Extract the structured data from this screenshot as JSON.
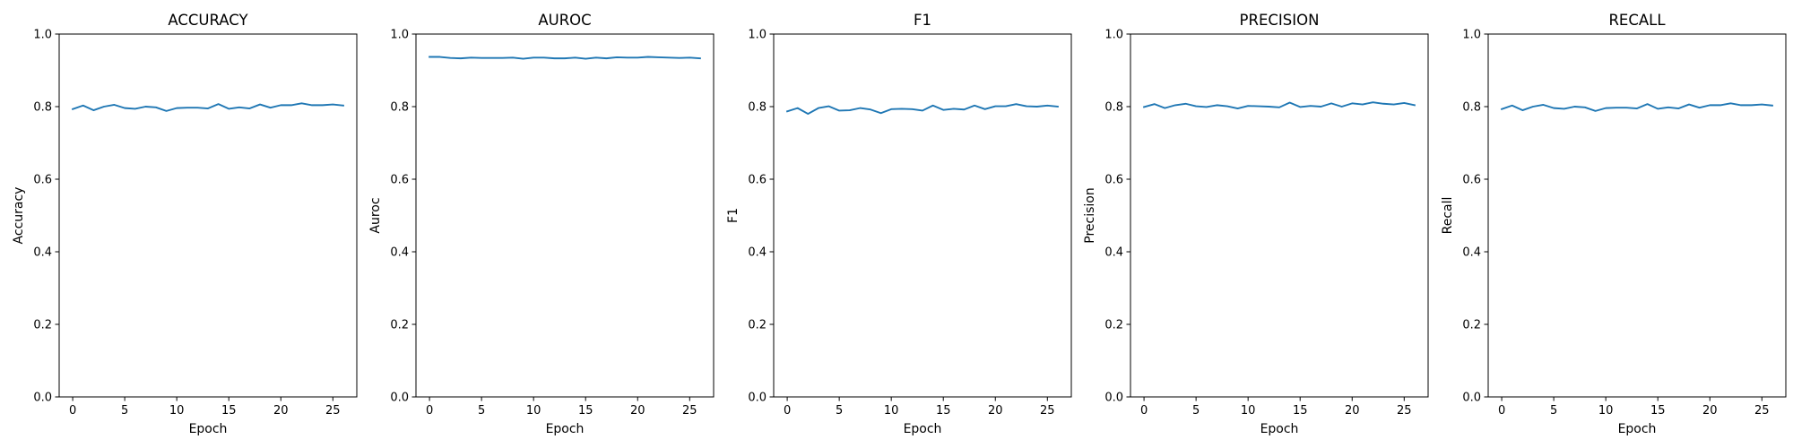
{
  "figure": {
    "background": "#ffffff",
    "line_color": "#1f77b4"
  },
  "chart_data": [
    {
      "type": "line",
      "title": "ACCURACY",
      "xlabel": "Epoch",
      "ylabel": "Accuracy",
      "xlim": [
        -1.3,
        27.3
      ],
      "ylim": [
        0.0,
        1.0
      ],
      "xticks": [
        0,
        5,
        10,
        15,
        20,
        25
      ],
      "yticks": [
        0.0,
        0.2,
        0.4,
        0.6,
        0.8,
        1.0
      ],
      "grid": false,
      "series": [
        {
          "x": [
            0,
            1,
            2,
            3,
            4,
            5,
            6,
            7,
            8,
            9,
            10,
            11,
            12,
            13,
            14,
            15,
            16,
            17,
            18,
            19,
            20,
            21,
            22,
            23,
            24,
            25,
            26
          ],
          "y": [
            0.793,
            0.803,
            0.79,
            0.8,
            0.805,
            0.796,
            0.794,
            0.8,
            0.798,
            0.788,
            0.796,
            0.797,
            0.797,
            0.795,
            0.807,
            0.794,
            0.798,
            0.795,
            0.806,
            0.797,
            0.804,
            0.804,
            0.809,
            0.804,
            0.804,
            0.806,
            0.803
          ]
        }
      ]
    },
    {
      "type": "line",
      "title": "AUROC",
      "xlabel": "Epoch",
      "ylabel": "Auroc",
      "xlim": [
        -1.3,
        27.3
      ],
      "ylim": [
        0.0,
        1.0
      ],
      "xticks": [
        0,
        5,
        10,
        15,
        20,
        25
      ],
      "yticks": [
        0.0,
        0.2,
        0.4,
        0.6,
        0.8,
        1.0
      ],
      "grid": false,
      "series": [
        {
          "x": [
            0,
            1,
            2,
            3,
            4,
            5,
            6,
            7,
            8,
            9,
            10,
            11,
            12,
            13,
            14,
            15,
            16,
            17,
            18,
            19,
            20,
            21,
            22,
            23,
            24,
            25,
            26
          ],
          "y": [
            0.937,
            0.937,
            0.934,
            0.933,
            0.935,
            0.934,
            0.934,
            0.934,
            0.935,
            0.932,
            0.935,
            0.935,
            0.933,
            0.933,
            0.935,
            0.932,
            0.935,
            0.933,
            0.936,
            0.935,
            0.935,
            0.937,
            0.936,
            0.935,
            0.934,
            0.935,
            0.933
          ]
        }
      ]
    },
    {
      "type": "line",
      "title": "F1",
      "xlabel": "Epoch",
      "ylabel": "F1",
      "xlim": [
        -1.3,
        27.3
      ],
      "ylim": [
        0.0,
        1.0
      ],
      "xticks": [
        0,
        5,
        10,
        15,
        20,
        25
      ],
      "yticks": [
        0.0,
        0.2,
        0.4,
        0.6,
        0.8,
        1.0
      ],
      "grid": false,
      "series": [
        {
          "x": [
            0,
            1,
            2,
            3,
            4,
            5,
            6,
            7,
            8,
            9,
            10,
            11,
            12,
            13,
            14,
            15,
            16,
            17,
            18,
            19,
            20,
            21,
            22,
            23,
            24,
            25,
            26
          ],
          "y": [
            0.787,
            0.796,
            0.78,
            0.796,
            0.801,
            0.789,
            0.79,
            0.796,
            0.792,
            0.782,
            0.793,
            0.794,
            0.793,
            0.789,
            0.803,
            0.791,
            0.794,
            0.792,
            0.803,
            0.793,
            0.801,
            0.801,
            0.807,
            0.801,
            0.8,
            0.803,
            0.8
          ]
        }
      ]
    },
    {
      "type": "line",
      "title": "PRECISION",
      "xlabel": "Epoch",
      "ylabel": "Precision",
      "xlim": [
        -1.3,
        27.3
      ],
      "ylim": [
        0.0,
        1.0
      ],
      "xticks": [
        0,
        5,
        10,
        15,
        20,
        25
      ],
      "yticks": [
        0.0,
        0.2,
        0.4,
        0.6,
        0.8,
        1.0
      ],
      "grid": false,
      "series": [
        {
          "x": [
            0,
            1,
            2,
            3,
            4,
            5,
            6,
            7,
            8,
            9,
            10,
            11,
            12,
            13,
            14,
            15,
            16,
            17,
            18,
            19,
            20,
            21,
            22,
            23,
            24,
            25,
            26
          ],
          "y": [
            0.799,
            0.807,
            0.796,
            0.804,
            0.808,
            0.801,
            0.799,
            0.804,
            0.801,
            0.795,
            0.802,
            0.801,
            0.8,
            0.798,
            0.811,
            0.799,
            0.802,
            0.8,
            0.809,
            0.8,
            0.809,
            0.806,
            0.812,
            0.808,
            0.806,
            0.81,
            0.804
          ]
        }
      ]
    },
    {
      "type": "line",
      "title": "RECALL",
      "xlabel": "Epoch",
      "ylabel": "Recall",
      "xlim": [
        -1.3,
        27.3
      ],
      "ylim": [
        0.0,
        1.0
      ],
      "xticks": [
        0,
        5,
        10,
        15,
        20,
        25
      ],
      "yticks": [
        0.0,
        0.2,
        0.4,
        0.6,
        0.8,
        1.0
      ],
      "grid": false,
      "series": [
        {
          "x": [
            0,
            1,
            2,
            3,
            4,
            5,
            6,
            7,
            8,
            9,
            10,
            11,
            12,
            13,
            14,
            15,
            16,
            17,
            18,
            19,
            20,
            21,
            22,
            23,
            24,
            25,
            26
          ],
          "y": [
            0.793,
            0.803,
            0.79,
            0.8,
            0.805,
            0.796,
            0.794,
            0.8,
            0.798,
            0.788,
            0.796,
            0.797,
            0.797,
            0.795,
            0.807,
            0.794,
            0.798,
            0.795,
            0.806,
            0.797,
            0.804,
            0.804,
            0.809,
            0.804,
            0.804,
            0.806,
            0.803
          ]
        }
      ]
    }
  ]
}
